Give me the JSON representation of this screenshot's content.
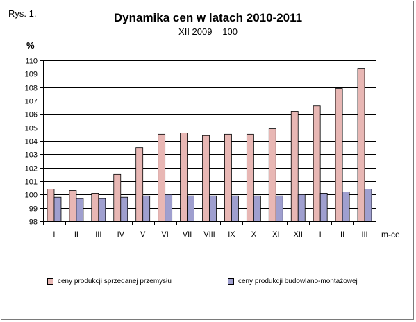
{
  "header": {
    "figure_label": "Rys. 1.",
    "title": "Dynamika cen w latach 2010-2011",
    "subtitle": "XII 2009 = 100",
    "ylabel": "%",
    "xlabel": "m-ce"
  },
  "colors": {
    "series1": "#e8b7b4",
    "series2": "#9f9fcf"
  },
  "chart_data": {
    "type": "bar",
    "title": "Dynamika cen w latach 2010-2011",
    "subtitle": "XII 2009 = 100",
    "ylabel": "%",
    "xlabel": "m-ce",
    "ylim": [
      98,
      110
    ],
    "yticks": [
      98,
      99,
      100,
      101,
      102,
      103,
      104,
      105,
      106,
      107,
      108,
      109,
      110
    ],
    "grid": true,
    "legend_position": "bottom",
    "categories": [
      "I",
      "II",
      "III",
      "IV",
      "V",
      "VI",
      "VII",
      "VIII",
      "IX",
      "X",
      "XI",
      "XII",
      "I",
      "II",
      "III"
    ],
    "series": [
      {
        "name": "ceny produkcji sprzedanej przemysłu",
        "values": [
          100.4,
          100.3,
          100.1,
          101.5,
          103.5,
          104.5,
          104.6,
          104.4,
          104.5,
          104.5,
          104.9,
          106.2,
          106.6,
          107.9,
          109.4
        ]
      },
      {
        "name": "ceny produkcji budowlano-montażowej",
        "values": [
          99.8,
          99.7,
          99.7,
          99.8,
          99.9,
          100.0,
          99.9,
          99.9,
          99.9,
          99.9,
          99.9,
          100.0,
          100.1,
          100.2,
          100.4
        ]
      }
    ]
  }
}
